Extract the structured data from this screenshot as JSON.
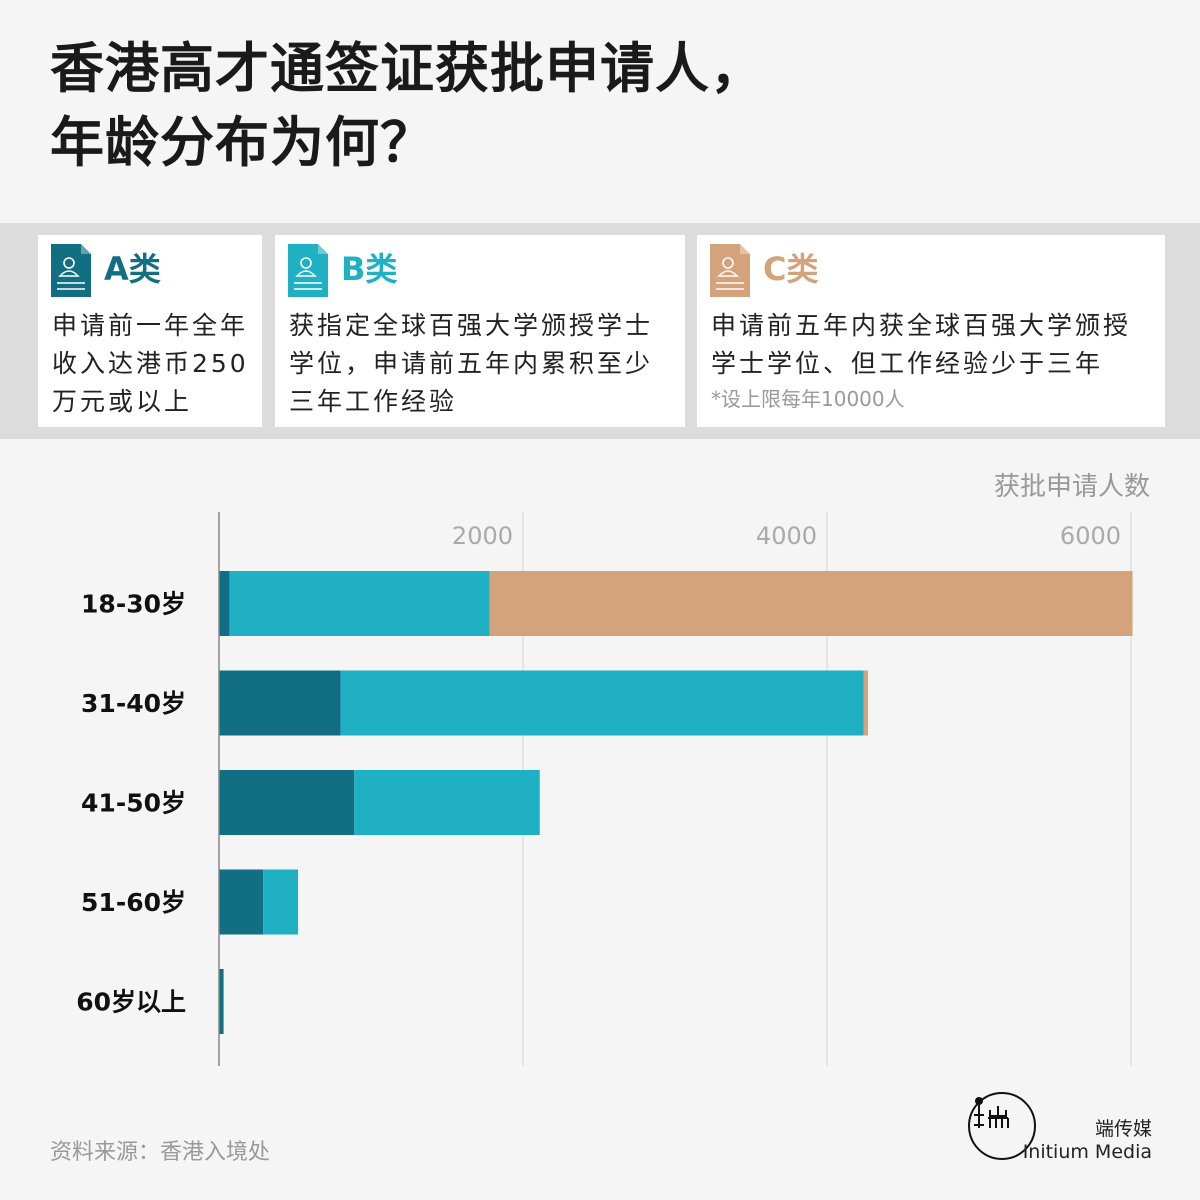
{
  "title": {
    "line1": "香港高才通签证获批申请人，",
    "line2": "年龄分布为何？"
  },
  "categories": [
    {
      "label": "A类",
      "color": "#126e82",
      "icon": "document-person-icon",
      "desc_lines": [
        "申请前一年全年",
        "收入达港币250",
        "万元或以上"
      ],
      "note": ""
    },
    {
      "label": "B类",
      "color": "#1fb0c4",
      "icon": "document-person-icon",
      "desc_lines": [
        "获指定全球百强大学颁授学士",
        "学位，申请前五年内累积至少",
        "三年工作经验"
      ],
      "note": ""
    },
    {
      "label": "C类",
      "color": "#d4a37b",
      "icon": "document-person-icon",
      "desc_lines": [
        "申请前五年内获全球百强大学颁授",
        "学士学位、但工作经验少于三年"
      ],
      "note": "*设上限每年10000人"
    }
  ],
  "chart_data": {
    "type": "bar",
    "orientation": "horizontal",
    "stacked": true,
    "unit_label": "获批申请人数",
    "categories": [
      "18-30岁",
      "31-40岁",
      "41-50岁",
      "51-60岁",
      "60岁以上"
    ],
    "series": [
      {
        "name": "A类",
        "color": "#126e82",
        "values": [
          70,
          800,
          890,
          290,
          30
        ]
      },
      {
        "name": "B类",
        "color": "#1fb0c4",
        "values": [
          1710,
          3440,
          1220,
          230,
          0
        ]
      },
      {
        "name": "C类",
        "color": "#d4a37b",
        "values": [
          4230,
          30,
          0,
          0,
          0
        ]
      }
    ],
    "xticks": [
      2000,
      4000,
      6000
    ],
    "xlim": [
      0,
      6100
    ],
    "grid": true
  },
  "source": "资料来源：香港入境处",
  "brand": {
    "name_cn": "端传媒",
    "name_en": "Initium Media"
  }
}
